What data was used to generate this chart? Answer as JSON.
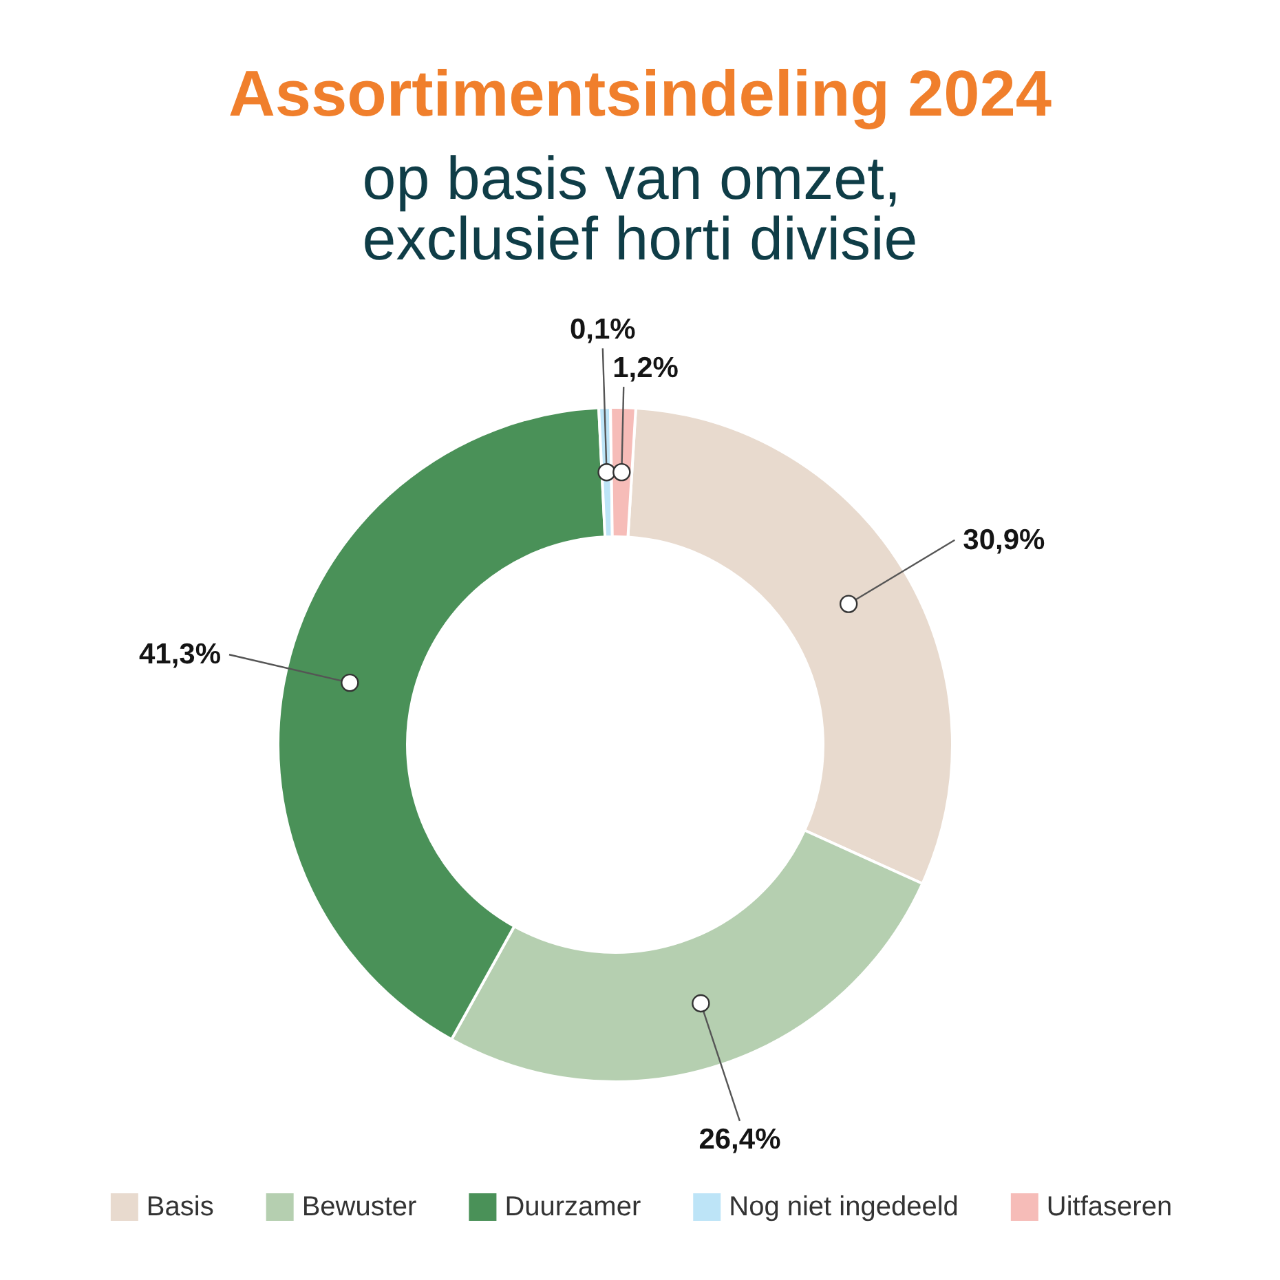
{
  "chart_data": {
    "type": "donut",
    "title": "Assortimentsindeling 2024",
    "subtitle": "op basis van omzet, exclusief horti divisie",
    "categories": [
      "Basis",
      "Bewuster",
      "Duurzamer",
      "Nog niet ingedeeld",
      "Uitfaseren"
    ],
    "values": [
      30.9,
      26.4,
      41.3,
      0.1,
      1.2
    ],
    "colors": [
      "#e8dace",
      "#b5cfb0",
      "#4a9158",
      "#bde4f7",
      "#f6bcb8"
    ],
    "value_labels": [
      "30,9%",
      "26,4%",
      "41,3%",
      "0,1%",
      "1,2%"
    ],
    "legend": "bottom"
  }
}
